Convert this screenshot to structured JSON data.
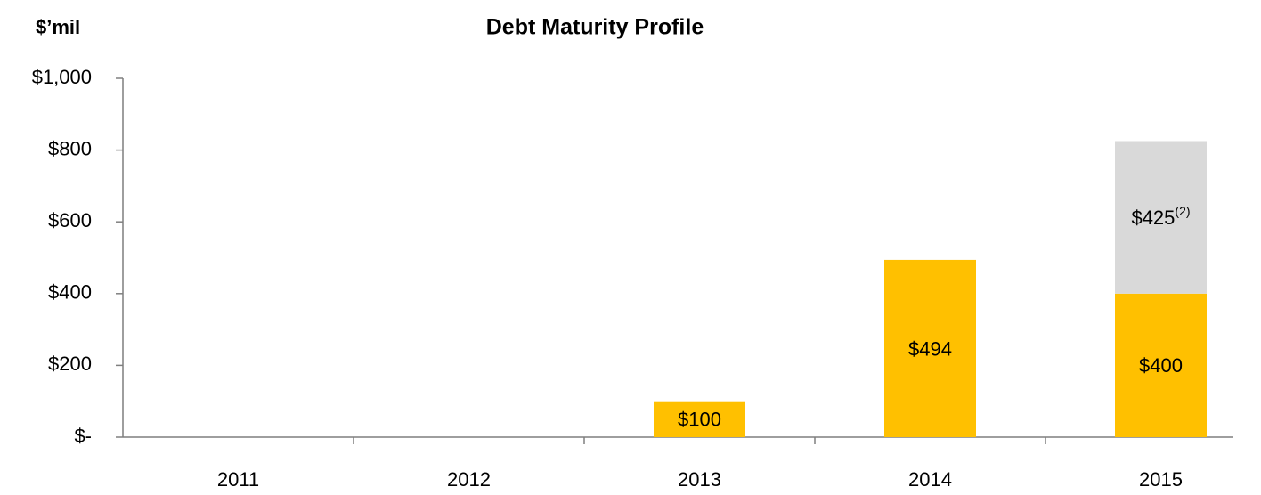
{
  "chart_data": {
    "type": "stacked_bar",
    "title": "Debt Maturity Profile",
    "y_label": "$’mil",
    "categories": [
      "2011",
      "2012",
      "2013",
      "2014",
      "2015"
    ],
    "series": [
      {
        "color": "#FFC000",
        "values": [
          null,
          null,
          100,
          494,
          400
        ],
        "value_labels": [
          null,
          null,
          "$100",
          "$494",
          "$400"
        ]
      },
      {
        "color": "#D9D9D9",
        "values": [
          null,
          null,
          null,
          null,
          425
        ],
        "value_labels": [
          null,
          null,
          null,
          null,
          "$425(2)"
        ]
      }
    ],
    "ylim": [
      0,
      1000
    ],
    "yticks": [
      {
        "value": 0,
        "label": "$-"
      },
      {
        "value": 200,
        "label": "$200"
      },
      {
        "value": 400,
        "label": "$400"
      },
      {
        "value": 600,
        "label": "$600"
      },
      {
        "value": 800,
        "label": "$800"
      },
      {
        "value": 1000,
        "label": "$1,000"
      }
    ],
    "grid": false
  }
}
